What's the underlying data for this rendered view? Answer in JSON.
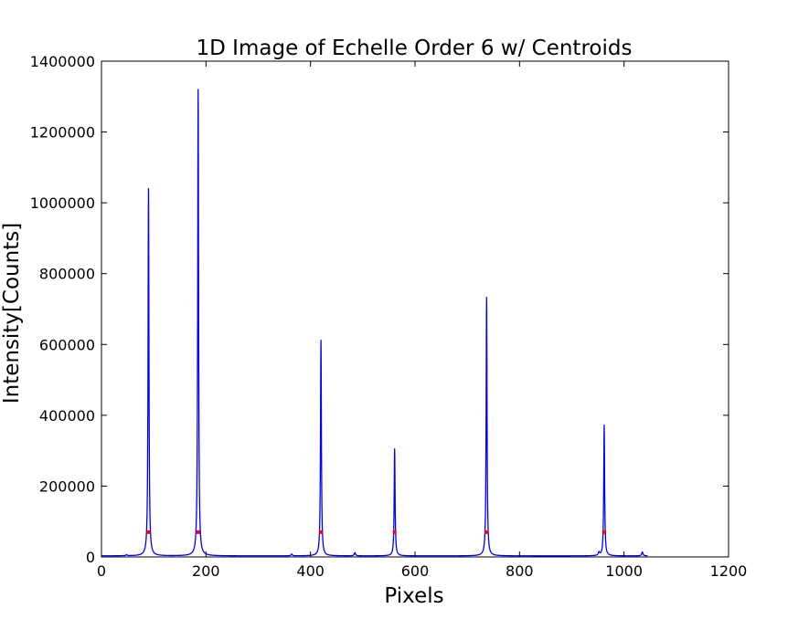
{
  "chart_data": {
    "type": "line",
    "title": "1D Image of Echelle Order 6 w/ Centroids",
    "xlabel": "Pixels",
    "ylabel": "Intensity[Counts]",
    "xlim": [
      0,
      1200
    ],
    "ylim": [
      0,
      1400000
    ],
    "xticks": [
      "0",
      "200",
      "400",
      "600",
      "800",
      "1000",
      "1200"
    ],
    "yticks": [
      "0",
      "200000",
      "400000",
      "600000",
      "800000",
      "1000000",
      "1200000",
      "1400000"
    ],
    "grid": false,
    "legend": "none",
    "series": [
      {
        "kind": "line",
        "color": "#0000ff",
        "x_range": [
          0,
          1045
        ],
        "baseline": 3000,
        "peaks": [
          {
            "x": 48,
            "y": 6000
          },
          {
            "x": 90,
            "y": 1040000
          },
          {
            "x": 185,
            "y": 1320000
          },
          {
            "x": 364,
            "y": 8000
          },
          {
            "x": 420,
            "y": 612000
          },
          {
            "x": 485,
            "y": 12000
          },
          {
            "x": 561,
            "y": 305000
          },
          {
            "x": 737,
            "y": 733000
          },
          {
            "x": 952,
            "y": 12000
          },
          {
            "x": 962,
            "y": 372000
          },
          {
            "x": 1035,
            "y": 14000
          }
        ]
      },
      {
        "kind": "scatter",
        "color": "#ff0000",
        "name_hidden": true,
        "x": [
          90,
          185,
          420,
          561,
          737,
          962
        ],
        "y": [
          70000,
          70000,
          70000,
          70000,
          70000,
          70000
        ]
      }
    ]
  }
}
